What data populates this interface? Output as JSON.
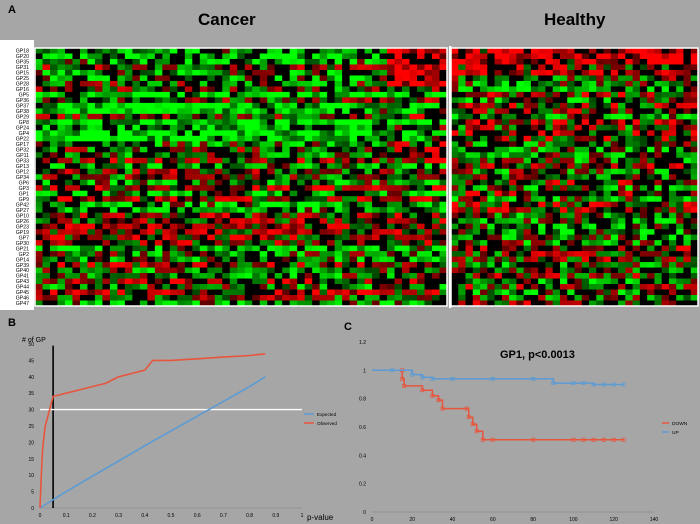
{
  "panels": {
    "a": {
      "letter": "A",
      "groups": [
        "Cancer",
        "Healthy"
      ],
      "row_labels": [
        "GP18",
        "GP20",
        "GP35",
        "GP31",
        "GP15",
        "GP25",
        "GP28",
        "GP16",
        "GP5",
        "GP36",
        "GP37",
        "GP38",
        "GP29",
        "GP8",
        "GP24",
        "GP4",
        "GP22",
        "GP17",
        "GP32",
        "GP11",
        "GP33",
        "GP13",
        "GP12",
        "GP34",
        "GP6",
        "GP3",
        "GP1",
        "GP9",
        "GP42",
        "GP27",
        "GP10",
        "GP26",
        "GP23",
        "GP19",
        "GP7",
        "GP30",
        "GP21",
        "GP2",
        "GP14",
        "GP39",
        "GP40",
        "GP41",
        "GP43",
        "GP44",
        "GP45",
        "GP46",
        "GP47"
      ]
    },
    "b": {
      "letter": "B",
      "ylabel": "# of GP",
      "xlabel": "p-value"
    },
    "c": {
      "letter": "C",
      "title": "GP1, p<0.0013"
    }
  },
  "chart_data": [
    {
      "type": "heatmap",
      "title": "",
      "column_groups": [
        {
          "name": "Cancer",
          "columns": 55
        },
        {
          "name": "Healthy",
          "columns": 34
        }
      ],
      "rows": 47,
      "colors": {
        "high": "#ff1010",
        "mid": "#000000",
        "low": "#00ff00"
      }
    },
    {
      "type": "line",
      "xlabel": "p-value",
      "ylabel": "# of GP",
      "xlim": [
        0,
        1
      ],
      "ylim": [
        0,
        50
      ],
      "xticks": [
        0,
        0.1,
        0.2,
        0.3,
        0.4,
        0.5,
        0.6,
        0.7,
        0.8,
        0.9,
        1
      ],
      "yticks": [
        0,
        5,
        10,
        15,
        20,
        25,
        30,
        35,
        40,
        45,
        50
      ],
      "reference_lines": [
        {
          "orientation": "vertical",
          "x": 0.05,
          "color": "#000000"
        },
        {
          "orientation": "horizontal",
          "y": 30,
          "color": "#ffffff"
        }
      ],
      "series": [
        {
          "name": "Expected",
          "color": "#5b9bd5",
          "x": [
            0,
            0.1,
            0.2,
            0.3,
            0.4,
            0.5,
            0.6,
            0.7,
            0.8,
            0.86
          ],
          "y": [
            0,
            5,
            9.7,
            14.3,
            19,
            23.5,
            28,
            32.5,
            37,
            40
          ]
        },
        {
          "name": "Observed",
          "color": "#e8553d",
          "x": [
            0,
            0.005,
            0.01,
            0.02,
            0.03,
            0.05,
            0.1,
            0.15,
            0.2,
            0.25,
            0.3,
            0.35,
            0.4,
            0.43,
            0.5,
            0.6,
            0.7,
            0.8,
            0.86
          ],
          "y": [
            0,
            10,
            18,
            25,
            28,
            34,
            35,
            36,
            37,
            38,
            40,
            41,
            42,
            45,
            45,
            45.5,
            46,
            46.5,
            47
          ]
        }
      ]
    },
    {
      "type": "line",
      "title": "GP1, p<0.0013",
      "xlim": [
        0,
        140
      ],
      "ylim": [
        0,
        1.2
      ],
      "xticks": [
        0,
        20,
        40,
        60,
        80,
        100,
        120,
        140
      ],
      "yticks": [
        0,
        0.2,
        0.4,
        0.6,
        0.8,
        1,
        1.2
      ],
      "ytick_labels": [
        "0",
        "0.2",
        "0.4",
        "0.6",
        "0.8",
        "1",
        "1.2"
      ],
      "series": [
        {
          "name": "DOWN",
          "color": "#e8553d",
          "x": [
            0,
            15,
            15,
            16,
            25,
            30,
            33,
            35,
            47,
            48,
            50,
            52,
            55,
            60,
            80,
            100,
            105,
            110,
            115,
            120,
            125
          ],
          "y": [
            1,
            1,
            0.94,
            0.89,
            0.86,
            0.82,
            0.79,
            0.73,
            0.73,
            0.67,
            0.62,
            0.57,
            0.51,
            0.51,
            0.51,
            0.51,
            0.51,
            0.51,
            0.51,
            0.51,
            0.51
          ]
        },
        {
          "name": "UP",
          "color": "#5b9bd5",
          "x": [
            0,
            10,
            20,
            25,
            30,
            40,
            60,
            80,
            90,
            100,
            105,
            110,
            115,
            120,
            125
          ],
          "y": [
            1,
            1,
            0.97,
            0.95,
            0.94,
            0.94,
            0.94,
            0.94,
            0.91,
            0.91,
            0.91,
            0.9,
            0.9,
            0.9,
            0.9
          ]
        }
      ]
    }
  ]
}
